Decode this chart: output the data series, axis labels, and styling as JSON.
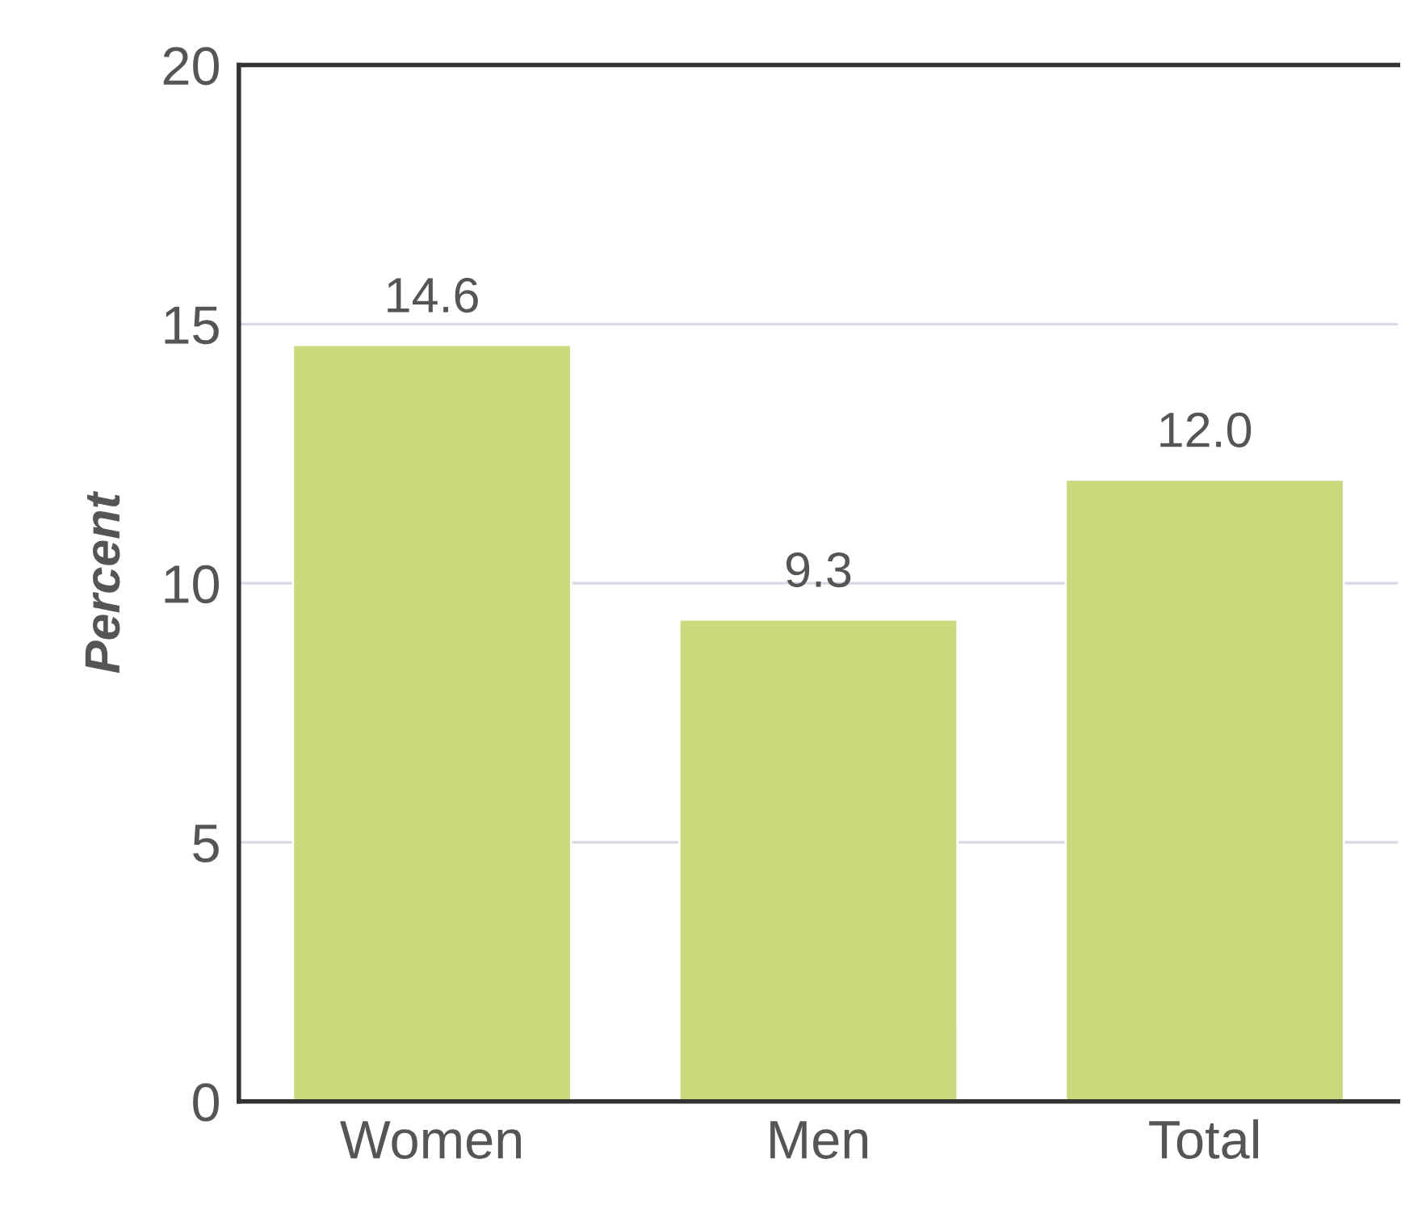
{
  "chart_data": {
    "type": "bar",
    "ylabel": "Percent",
    "categories": [
      "Women",
      "Men",
      "Total"
    ],
    "values": [
      14.6,
      9.3,
      12.0
    ],
    "value_labels": [
      "14.6",
      "9.3",
      "12.0"
    ],
    "color": "#c9d97c",
    "ylim": [
      0,
      20
    ],
    "yticks": [
      0,
      5,
      10,
      15,
      20
    ],
    "grid": "y",
    "legend": false
  }
}
